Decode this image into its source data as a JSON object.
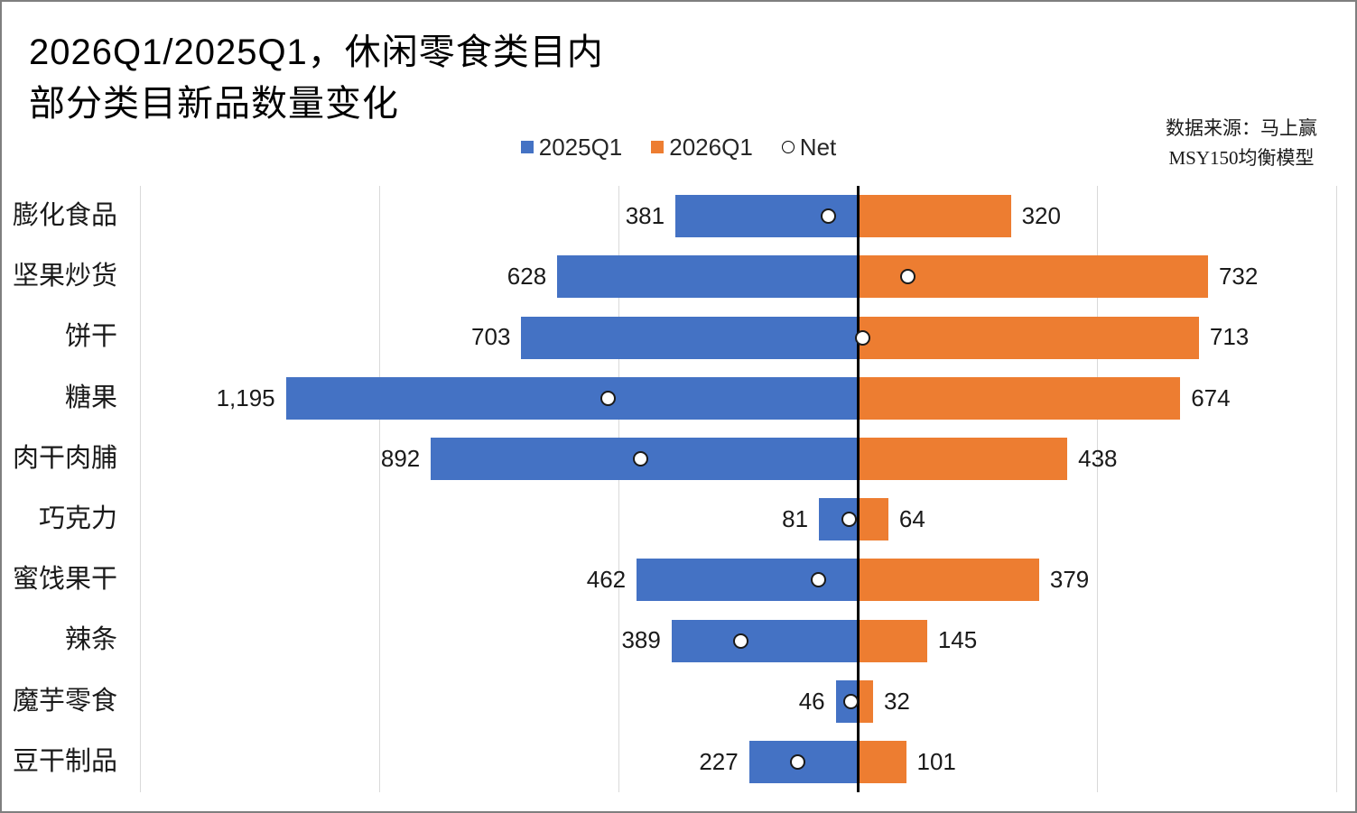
{
  "title": {
    "line1": "2026Q1/2025Q1，休闲零食类目内",
    "line2": "部分类目新品数量变化"
  },
  "source": {
    "line1": "数据来源：马上赢",
    "line2": "MSY150均衡模型"
  },
  "legend": [
    {
      "label": "2025Q1",
      "marker": "square",
      "color": "#4472C4"
    },
    {
      "label": "2026Q1",
      "marker": "square",
      "color": "#ED7D31"
    },
    {
      "label": "Net",
      "marker": "circle-outline",
      "color": "#FFFFFF"
    }
  ],
  "colors": {
    "bar_2025q1": "#4472C4",
    "bar_2026q1": "#ED7D31",
    "axis_line": "#000000",
    "gridline": "#D9D9D9",
    "page_border": "#7F7F7F"
  },
  "chart_data": {
    "type": "bar",
    "orientation": "horizontal-diverging",
    "title": "2026Q1/2025Q1，休闲零食类目内部分类目新品数量变化",
    "categories": [
      "膨化食品",
      "坚果炒货",
      "饼干",
      "糖果",
      "肉干肉脯",
      "巧克力",
      "蜜饯果干",
      "辣条",
      "魔芋零食",
      "豆干制品"
    ],
    "series": [
      {
        "name": "2025Q1",
        "direction": "left",
        "color": "#4472C4",
        "values": [
          381,
          628,
          703,
          1195,
          892,
          81,
          462,
          389,
          46,
          227
        ]
      },
      {
        "name": "2026Q1",
        "direction": "right",
        "color": "#ED7D31",
        "values": [
          320,
          732,
          713,
          674,
          438,
          64,
          379,
          145,
          32,
          101
        ]
      },
      {
        "name": "Net",
        "marker": "circle",
        "values": [
          -61,
          104,
          10,
          -521,
          -454,
          -17,
          -83,
          -244,
          -14,
          -126
        ]
      }
    ],
    "value_labels": {
      "s2025": [
        "381",
        "628",
        "703",
        "1,195",
        "892",
        "81",
        "462",
        "389",
        "46",
        "227"
      ],
      "s2026": [
        "320",
        "732",
        "713",
        "674",
        "438",
        "64",
        "379",
        "145",
        "32",
        "101"
      ]
    },
    "xlim": [
      -1500,
      1000
    ],
    "gridline_step": 500,
    "grid": true,
    "axis_line_x": 0,
    "legend_position": "top-center",
    "xlabel": "",
    "ylabel": ""
  }
}
